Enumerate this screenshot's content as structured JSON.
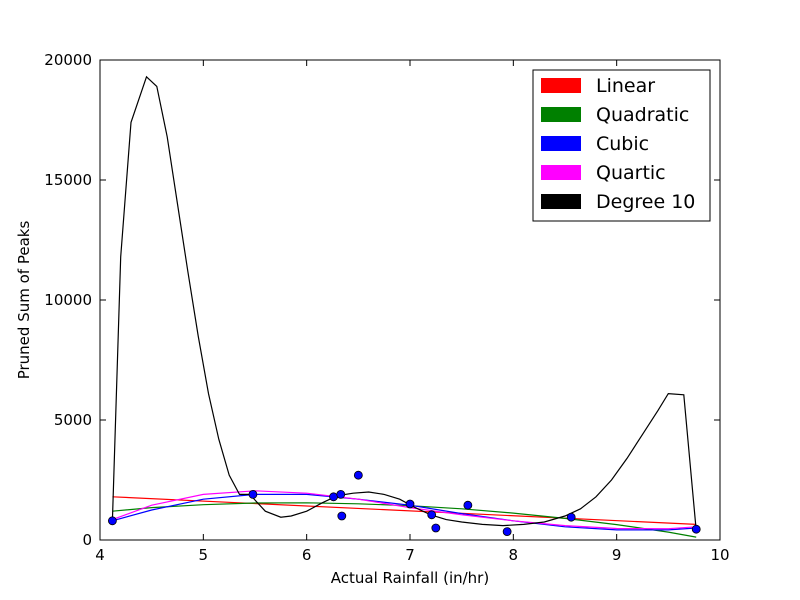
{
  "chart_data": {
    "type": "scatter",
    "xlabel": "Actual Rainfall (in/hr)",
    "ylabel": "Pruned Sum of Peaks",
    "xlim": [
      4,
      10
    ],
    "ylim": [
      0,
      20000
    ],
    "x_ticks": [
      "4",
      "5",
      "6",
      "7",
      "8",
      "9",
      "10"
    ],
    "y_ticks": [
      "0",
      "5000",
      "10000",
      "15000",
      "20000"
    ],
    "grid": false,
    "legend_position": "top-right",
    "points": {
      "color": "#0000ff",
      "x": [
        4.12,
        5.48,
        6.26,
        6.33,
        6.34,
        6.5,
        7.0,
        7.21,
        7.25,
        7.56,
        7.94,
        8.56,
        9.77
      ],
      "y": [
        800,
        1900,
        1800,
        1900,
        1000,
        2700,
        1500,
        1050,
        500,
        1450,
        350,
        950,
        450
      ]
    },
    "series": [
      {
        "name": "Linear",
        "color": "#ff0000",
        "x": [
          4.12,
          9.77
        ],
        "y": [
          1800,
          650
        ]
      },
      {
        "name": "Quadratic",
        "color": "#008000",
        "x": [
          4.12,
          4.5,
          5.0,
          5.5,
          6.0,
          6.5,
          7.0,
          7.5,
          8.0,
          8.5,
          9.0,
          9.5,
          9.77
        ],
        "y": [
          1200,
          1350,
          1470,
          1540,
          1550,
          1510,
          1430,
          1300,
          1120,
          900,
          640,
          330,
          120
        ]
      },
      {
        "name": "Cubic",
        "color": "#0000ff",
        "x": [
          4.12,
          4.5,
          5.0,
          5.5,
          6.0,
          6.5,
          7.0,
          7.5,
          8.0,
          8.5,
          9.0,
          9.5,
          9.77
        ],
        "y": [
          800,
          1250,
          1700,
          1900,
          1900,
          1700,
          1450,
          1100,
          800,
          550,
          420,
          420,
          500
        ]
      },
      {
        "name": "Quartic",
        "color": "#ff00ff",
        "x": [
          4.12,
          4.5,
          5.0,
          5.5,
          6.0,
          6.5,
          7.0,
          7.5,
          8.0,
          8.5,
          9.0,
          9.5,
          9.77
        ],
        "y": [
          850,
          1450,
          1900,
          2050,
          1950,
          1700,
          1350,
          1050,
          800,
          600,
          480,
          470,
          550
        ]
      },
      {
        "name": "Degree 10",
        "color": "#000000",
        "x": [
          4.12,
          4.2,
          4.3,
          4.45,
          4.55,
          4.65,
          4.75,
          4.85,
          4.95,
          5.05,
          5.15,
          5.25,
          5.35,
          5.45,
          5.6,
          5.75,
          5.85,
          6.0,
          6.15,
          6.3,
          6.45,
          6.6,
          6.75,
          6.9,
          7.05,
          7.2,
          7.35,
          7.5,
          7.7,
          7.9,
          8.1,
          8.3,
          8.5,
          8.65,
          8.8,
          8.95,
          9.1,
          9.25,
          9.4,
          9.5,
          9.65,
          9.77
        ],
        "y": [
          800,
          11800,
          17400,
          19300,
          18900,
          16800,
          14000,
          11200,
          8500,
          6100,
          4200,
          2700,
          1900,
          1900,
          1200,
          950,
          1000,
          1200,
          1550,
          1850,
          1950,
          2000,
          1900,
          1700,
          1350,
          1050,
          850,
          750,
          650,
          600,
          650,
          750,
          1000,
          1300,
          1800,
          2500,
          3400,
          4400,
          5400,
          6100,
          6050,
          400
        ]
      }
    ]
  }
}
